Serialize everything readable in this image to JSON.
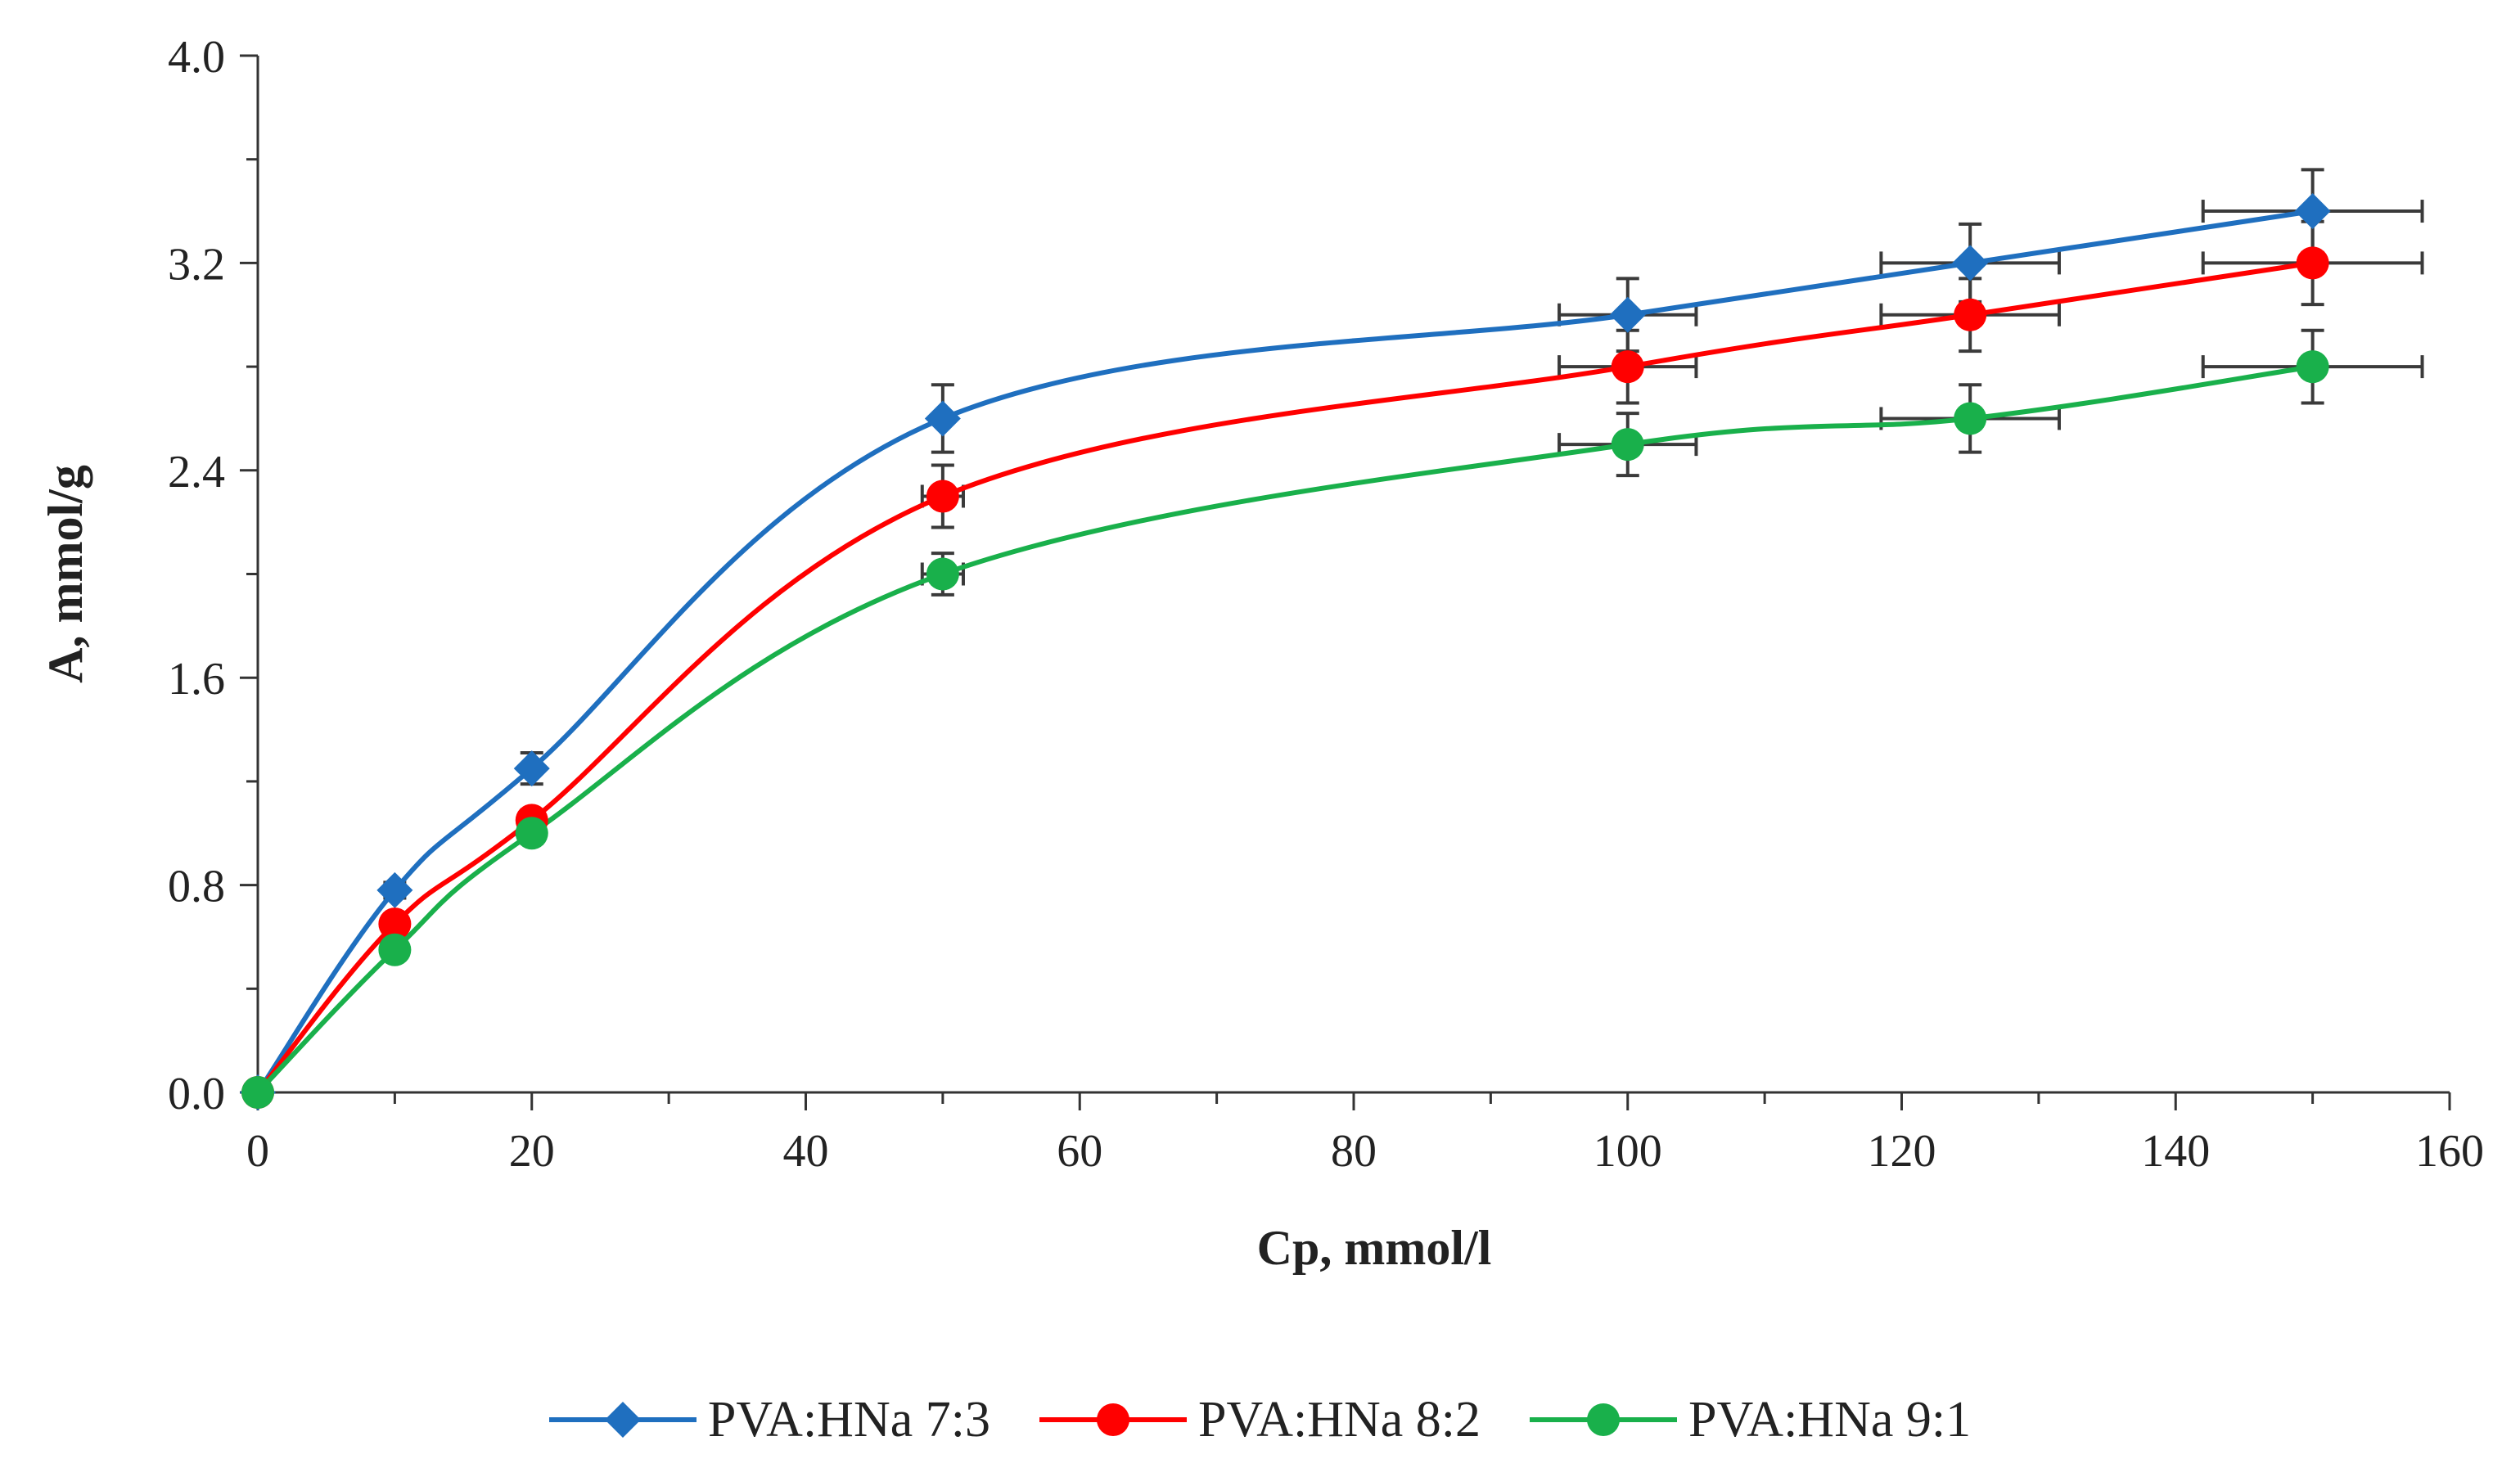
{
  "chart_data": {
    "type": "line",
    "title": "",
    "xlabel": "Cp, mmol/l",
    "ylabel": "A, mmol/g",
    "xlim": [
      0,
      160
    ],
    "ylim": [
      0,
      4.0
    ],
    "x_ticks": [
      0,
      20,
      40,
      60,
      80,
      100,
      120,
      140,
      160
    ],
    "x_tick_labels": [
      "0",
      "20",
      "40",
      "60",
      "80",
      "100",
      "120",
      "140",
      "160"
    ],
    "y_ticks": [
      0,
      0.8,
      1.6,
      2.4,
      3.2,
      4.0
    ],
    "y_tick_labels": [
      "0.0",
      "0.8",
      "1.6",
      "2.4",
      "3.2",
      "4.0"
    ],
    "grid": false,
    "legend_position": "bottom",
    "series": [
      {
        "name": "PVA:HNa 7:3",
        "color": "#1f6fbf",
        "marker": "diamond",
        "x": [
          0,
          10,
          20,
          50,
          100,
          125,
          150
        ],
        "y": [
          0,
          0.78,
          1.25,
          2.6,
          3.0,
          3.2,
          3.4
        ],
        "y_err": [
          0,
          0.03,
          0.06,
          0.13,
          0.14,
          0.15,
          0.16
        ],
        "x_err": [
          0,
          0,
          0,
          0,
          5,
          6.5,
          8
        ]
      },
      {
        "name": "PVA:HNa 8:2",
        "color": "#ff0000",
        "marker": "circle",
        "x": [
          0,
          10,
          20,
          50,
          100,
          125,
          150
        ],
        "y": [
          0,
          0.65,
          1.05,
          2.3,
          2.8,
          3.0,
          3.2
        ],
        "y_err": [
          0,
          0.02,
          0.04,
          0.12,
          0.14,
          0.14,
          0.16
        ],
        "x_err": [
          0,
          0,
          0,
          1.5,
          5,
          6.5,
          8
        ]
      },
      {
        "name": "PVA:HNa 9:1",
        "color": "#19b04b",
        "marker": "circle",
        "x": [
          0,
          10,
          20,
          50,
          100,
          125,
          150
        ],
        "y": [
          0,
          0.55,
          1.0,
          2.0,
          2.5,
          2.6,
          2.8
        ],
        "y_err": [
          0,
          0.02,
          0.04,
          0.08,
          0.12,
          0.13,
          0.14
        ],
        "x_err": [
          0,
          0,
          0,
          1.5,
          5,
          6.5,
          8
        ]
      }
    ]
  }
}
